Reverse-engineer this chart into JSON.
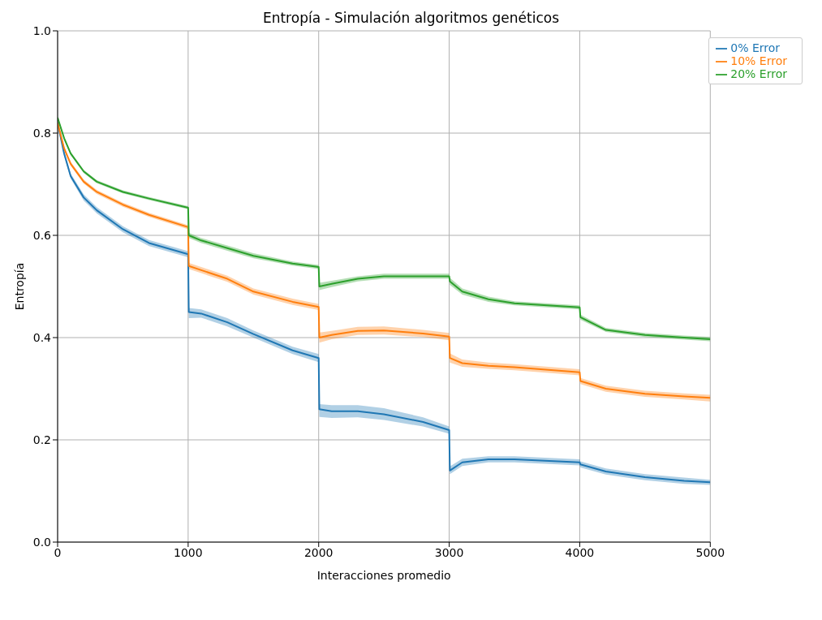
{
  "chart_data": {
    "type": "line",
    "title": "Entropía - Simulación algoritmos genéticos",
    "xlabel": "Interacciones promedio",
    "ylabel": "Entropía",
    "x": [
      0,
      50,
      100,
      200,
      300,
      500,
      700,
      1000,
      1005,
      1100,
      1300,
      1500,
      1800,
      2000,
      2005,
      2100,
      2300,
      2500,
      2800,
      3000,
      3005,
      3100,
      3300,
      3500,
      4000,
      4005,
      4200,
      4500,
      4800,
      5000
    ],
    "series": [
      {
        "name": "0% Error",
        "color": "#1f77b4",
        "values": [
          0.82,
          0.76,
          0.716,
          0.674,
          0.649,
          0.612,
          0.585,
          0.563,
          0.45,
          0.447,
          0.43,
          0.407,
          0.375,
          0.36,
          0.26,
          0.256,
          0.256,
          0.25,
          0.235,
          0.219,
          0.14,
          0.156,
          0.162,
          0.162,
          0.156,
          0.152,
          0.138,
          0.127,
          0.12,
          0.117
        ],
        "lower": [
          0.815,
          0.755,
          0.711,
          0.668,
          0.643,
          0.606,
          0.579,
          0.557,
          0.438,
          0.439,
          0.422,
          0.4,
          0.368,
          0.352,
          0.245,
          0.243,
          0.244,
          0.239,
          0.226,
          0.212,
          0.133,
          0.149,
          0.156,
          0.156,
          0.15,
          0.146,
          0.132,
          0.121,
          0.114,
          0.112
        ],
        "upper": [
          0.825,
          0.765,
          0.721,
          0.68,
          0.655,
          0.618,
          0.591,
          0.569,
          0.458,
          0.455,
          0.438,
          0.414,
          0.382,
          0.368,
          0.27,
          0.268,
          0.268,
          0.262,
          0.244,
          0.226,
          0.148,
          0.163,
          0.168,
          0.168,
          0.162,
          0.158,
          0.144,
          0.133,
          0.126,
          0.122
        ]
      },
      {
        "name": "10% Error",
        "color": "#ff7f0e",
        "values": [
          0.82,
          0.77,
          0.74,
          0.705,
          0.685,
          0.66,
          0.64,
          0.616,
          0.54,
          0.532,
          0.515,
          0.49,
          0.47,
          0.46,
          0.4,
          0.405,
          0.413,
          0.414,
          0.408,
          0.402,
          0.36,
          0.35,
          0.345,
          0.342,
          0.332,
          0.315,
          0.3,
          0.29,
          0.285,
          0.282
        ],
        "lower": [
          0.816,
          0.766,
          0.736,
          0.701,
          0.681,
          0.656,
          0.636,
          0.612,
          0.534,
          0.526,
          0.509,
          0.484,
          0.464,
          0.454,
          0.39,
          0.397,
          0.405,
          0.406,
          0.401,
          0.395,
          0.351,
          0.343,
          0.339,
          0.336,
          0.326,
          0.309,
          0.294,
          0.284,
          0.279,
          0.275
        ],
        "upper": [
          0.824,
          0.774,
          0.744,
          0.709,
          0.689,
          0.664,
          0.644,
          0.62,
          0.546,
          0.538,
          0.521,
          0.496,
          0.476,
          0.466,
          0.41,
          0.413,
          0.421,
          0.422,
          0.415,
          0.409,
          0.369,
          0.357,
          0.351,
          0.348,
          0.338,
          0.321,
          0.306,
          0.296,
          0.291,
          0.288
        ]
      },
      {
        "name": "20% Error",
        "color": "#2ca02c",
        "values": [
          0.83,
          0.79,
          0.76,
          0.725,
          0.705,
          0.685,
          0.672,
          0.654,
          0.6,
          0.59,
          0.575,
          0.56,
          0.545,
          0.538,
          0.5,
          0.505,
          0.515,
          0.52,
          0.52,
          0.52,
          0.51,
          0.49,
          0.475,
          0.467,
          0.459,
          0.44,
          0.415,
          0.405,
          0.4,
          0.397
        ],
        "lower": [
          0.827,
          0.787,
          0.757,
          0.722,
          0.702,
          0.682,
          0.669,
          0.651,
          0.595,
          0.585,
          0.57,
          0.555,
          0.541,
          0.534,
          0.493,
          0.499,
          0.51,
          0.515,
          0.515,
          0.515,
          0.503,
          0.484,
          0.47,
          0.463,
          0.455,
          0.435,
          0.411,
          0.401,
          0.396,
          0.393
        ],
        "upper": [
          0.833,
          0.793,
          0.763,
          0.728,
          0.708,
          0.688,
          0.675,
          0.657,
          0.605,
          0.595,
          0.58,
          0.565,
          0.549,
          0.542,
          0.507,
          0.511,
          0.52,
          0.525,
          0.525,
          0.525,
          0.517,
          0.496,
          0.48,
          0.471,
          0.463,
          0.445,
          0.419,
          0.409,
          0.404,
          0.401
        ]
      }
    ],
    "xlim": [
      0,
      5000
    ],
    "xticks": [
      0,
      1000,
      2000,
      3000,
      4000,
      5000
    ],
    "ylim": [
      0,
      1
    ],
    "yticks": [
      {
        "value": 0,
        "label": "0.0"
      },
      {
        "value": 0.2,
        "label": "0.2"
      },
      {
        "value": 0.4,
        "label": "0.4"
      },
      {
        "value": 0.6,
        "label": "0.6"
      },
      {
        "value": 0.8,
        "label": "0.8"
      },
      {
        "value": 1,
        "label": "1.0"
      }
    ],
    "grid": true,
    "legend": "top right",
    "marker": "none",
    "line_style": "solid"
  }
}
